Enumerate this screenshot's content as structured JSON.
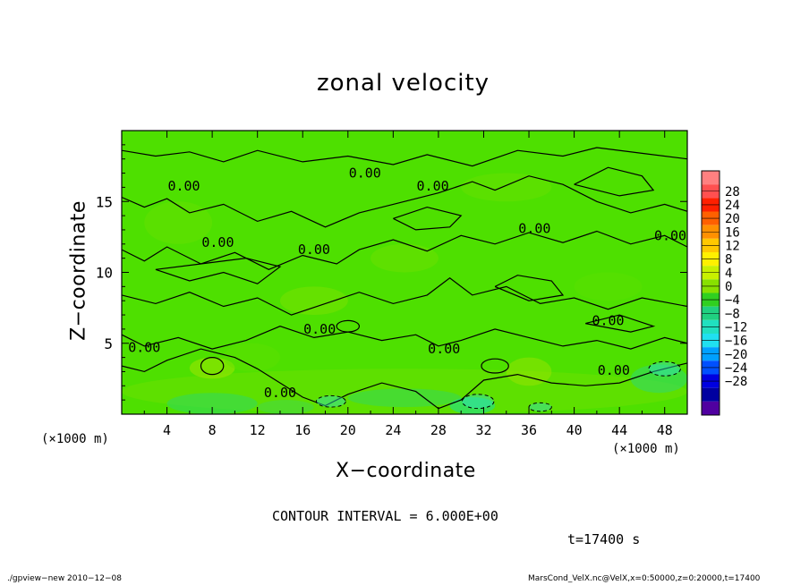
{
  "chart_data": {
    "type": "heatmap",
    "title": "zonal velocity",
    "xlabel": "X−coordinate",
    "ylabel": "Z−coordinate",
    "x_unit_label": "(×1000 m)",
    "y_unit_label": "(×1000 m)",
    "xlim": [
      0,
      50
    ],
    "ylim": [
      0,
      20
    ],
    "x_ticks": [
      4,
      8,
      12,
      16,
      20,
      24,
      28,
      32,
      36,
      40,
      44,
      48
    ],
    "y_ticks": [
      5,
      10,
      15
    ],
    "contour_interval_text": "CONTOUR INTERVAL = 6.000E+00",
    "contour_labels": [
      "0.00"
    ],
    "time_text": "t=17400 s",
    "colorbar": {
      "levels": [
        28,
        24,
        20,
        16,
        12,
        8,
        4,
        0,
        "−4",
        "−8",
        "−12",
        "−16",
        "−20",
        "−24",
        "−28"
      ],
      "colors": [
        "#ff8080",
        "#ff5050",
        "#ff2000",
        "#ff6000",
        "#ff9000",
        "#ffc800",
        "#fff000",
        "#c8f000",
        "#88e000",
        "#30d020",
        "#20d080",
        "#20e0c0",
        "#20e0f0",
        "#00a0ff",
        "#0050ff",
        "#0000e0",
        "#0000a0",
        "#5000a0"
      ]
    },
    "field_color": "#4ee000",
    "footer_left": "./gpview−new   2010−12−08",
    "footer_right": "MarsCond_VelX.nc@VelX,x=0:50000,z=0:20000,t=17400"
  }
}
